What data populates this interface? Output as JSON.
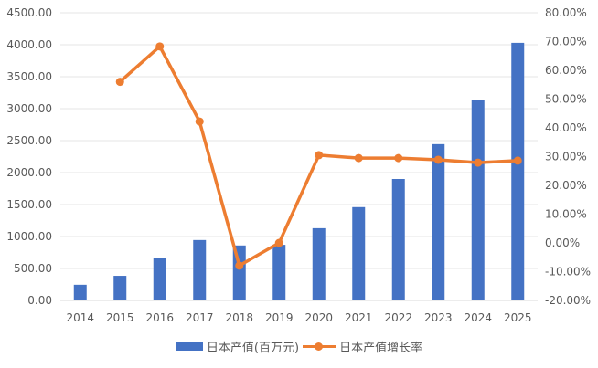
{
  "chart_data": {
    "type": "bar+line",
    "title": "",
    "categories": [
      "2014",
      "2015",
      "2016",
      "2017",
      "2018",
      "2019",
      "2020",
      "2021",
      "2022",
      "2023",
      "2024",
      "2025"
    ],
    "series": [
      {
        "name": "日本产值(百万元)",
        "type": "bar",
        "axis": "left",
        "color": "#4472C4",
        "values": [
          245,
          385,
          660,
          945,
          860,
          870,
          1130,
          1460,
          1900,
          2445,
          3130,
          4030
        ]
      },
      {
        "name": "日本产值增长率",
        "type": "line",
        "axis": "right",
        "color": "#ED7D31",
        "values": [
          null,
          56.0,
          68.3,
          42.2,
          -7.9,
          0.0,
          30.5,
          29.5,
          29.5,
          28.9,
          27.9,
          28.6
        ]
      }
    ],
    "left_axis": {
      "ylim": [
        0,
        4500
      ],
      "ticks": [
        "0.00",
        "500.00",
        "1000.00",
        "1500.00",
        "2000.00",
        "2500.00",
        "3000.00",
        "3500.00",
        "4000.00",
        "4500.00"
      ]
    },
    "right_axis": {
      "ylim": [
        -20,
        80
      ],
      "ticks": [
        "-20.00%",
        "-10.00%",
        "0.00%",
        "10.00%",
        "20.00%",
        "30.00%",
        "40.00%",
        "50.00%",
        "60.00%",
        "70.00%",
        "80.00%"
      ]
    },
    "xlabel": "",
    "ylabel": "",
    "grid": true,
    "legend_position": "bottom"
  },
  "legend": {
    "bar_label": "日本产值(百万元)",
    "line_label": "日本产值增长率"
  }
}
